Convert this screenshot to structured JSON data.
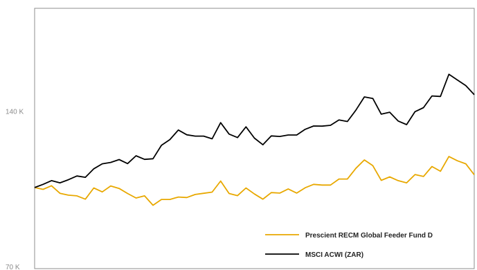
{
  "chart_data": {
    "type": "line",
    "title": "",
    "xlabel": "",
    "ylabel": "",
    "yscale": "log",
    "ylim": [
      70000,
      220000
    ],
    "yticks": [
      {
        "value": 70000,
        "label": "70 K"
      },
      {
        "value": 140000,
        "label": "140 K"
      }
    ],
    "grid": false,
    "legend_position": "bottom-right",
    "series": [
      {
        "name": "Prescient RECM Global Feeder Fund D",
        "color": "#E8A800",
        "values": [
          100000,
          99200,
          100800,
          97500,
          96700,
          96400,
          95000,
          99800,
          98100,
          100700,
          99600,
          97400,
          95500,
          96400,
          92500,
          94900,
          94900,
          95900,
          95700,
          97000,
          97500,
          98000,
          102900,
          97400,
          96500,
          99800,
          97200,
          95000,
          97800,
          97600,
          99400,
          97600,
          99900,
          101400,
          101100,
          101100,
          103800,
          103800,
          108800,
          112900,
          110100,
          103200,
          104800,
          103100,
          102100,
          105900,
          105000,
          109700,
          107400,
          114600,
          112500,
          111000,
          105800
        ]
      },
      {
        "name": "MSCI ACWI (ZAR)",
        "color": "#000000",
        "values": [
          100000,
          101400,
          103100,
          102100,
          103500,
          105200,
          104600,
          108600,
          111000,
          111700,
          113100,
          111100,
          115000,
          113200,
          113500,
          120400,
          123500,
          128800,
          126100,
          125400,
          125400,
          123900,
          133000,
          126500,
          124600,
          130600,
          124300,
          120700,
          125500,
          125200,
          126000,
          126000,
          129200,
          131100,
          131000,
          131500,
          134600,
          133700,
          140500,
          149000,
          148000,
          138100,
          139300,
          134000,
          131900,
          139600,
          142100,
          149600,
          149300,
          164600,
          160500,
          156600,
          150500
        ]
      }
    ]
  }
}
